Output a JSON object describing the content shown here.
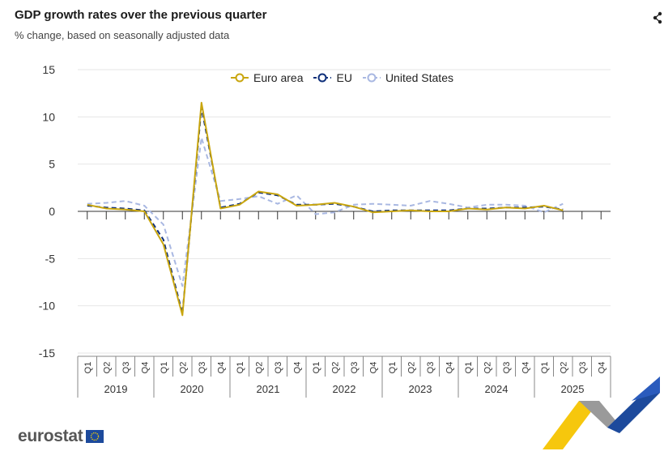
{
  "header": {
    "title": "GDP growth rates over the previous quarter",
    "subtitle": "% change, based on seasonally adjusted data"
  },
  "logo": {
    "text": "eurostat"
  },
  "icons": {
    "share": "share-icon"
  },
  "colors": {
    "euro_area": "#c9a60f",
    "eu": "#0e2f7a",
    "united_states": "#a9b8e2",
    "grid": "#e6e6e6",
    "axis": "#333333"
  },
  "chart_data": {
    "type": "line",
    "title": "GDP growth rates over the previous quarter",
    "subtitle": "% change, based on seasonally adjusted data",
    "ylim": [
      -15,
      15
    ],
    "yticks": [
      15,
      10,
      5,
      0,
      -5,
      -10,
      -15
    ],
    "grid": true,
    "legend_position": "top-center",
    "years": [
      "2019",
      "2020",
      "2021",
      "2022",
      "2023",
      "2024",
      "2025"
    ],
    "quarter_labels": [
      "Q1",
      "Q2",
      "Q3",
      "Q4"
    ],
    "categories": [
      "2019-Q1",
      "2019-Q2",
      "2019-Q3",
      "2019-Q4",
      "2020-Q1",
      "2020-Q2",
      "2020-Q3",
      "2020-Q4",
      "2021-Q1",
      "2021-Q2",
      "2021-Q3",
      "2021-Q4",
      "2022-Q1",
      "2022-Q2",
      "2022-Q3",
      "2022-Q4",
      "2023-Q1",
      "2023-Q2",
      "2023-Q3",
      "2023-Q4",
      "2024-Q1",
      "2024-Q2",
      "2024-Q3",
      "2024-Q4",
      "2025-Q1",
      "2025-Q2",
      "2025-Q3",
      "2025-Q4"
    ],
    "series": [
      {
        "name": "Euro area",
        "style": "solid",
        "values": [
          0.7,
          0.3,
          0.2,
          0.0,
          -3.5,
          -11.0,
          11.5,
          0.3,
          0.7,
          2.1,
          1.8,
          0.6,
          0.7,
          0.9,
          0.5,
          -0.1,
          0.0,
          0.1,
          0.0,
          0.0,
          0.3,
          0.2,
          0.4,
          0.3,
          0.6,
          0.1,
          null,
          null
        ]
      },
      {
        "name": "EU",
        "style": "dashed",
        "values": [
          0.6,
          0.4,
          0.3,
          0.1,
          -3.0,
          -10.8,
          11.0,
          0.4,
          0.8,
          2.0,
          1.7,
          0.7,
          0.7,
          0.8,
          0.5,
          0.0,
          0.1,
          0.1,
          0.1,
          0.1,
          0.3,
          0.3,
          0.4,
          0.4,
          0.5,
          0.2,
          null,
          null
        ]
      },
      {
        "name": "United States",
        "style": "dashed",
        "values": [
          0.8,
          0.9,
          1.1,
          0.6,
          -1.4,
          -7.9,
          7.8,
          1.1,
          1.3,
          1.6,
          0.8,
          1.7,
          -0.3,
          -0.1,
          0.7,
          0.8,
          0.7,
          0.6,
          1.1,
          0.8,
          0.4,
          0.7,
          0.7,
          0.6,
          -0.1,
          0.8,
          null,
          null
        ]
      }
    ]
  }
}
